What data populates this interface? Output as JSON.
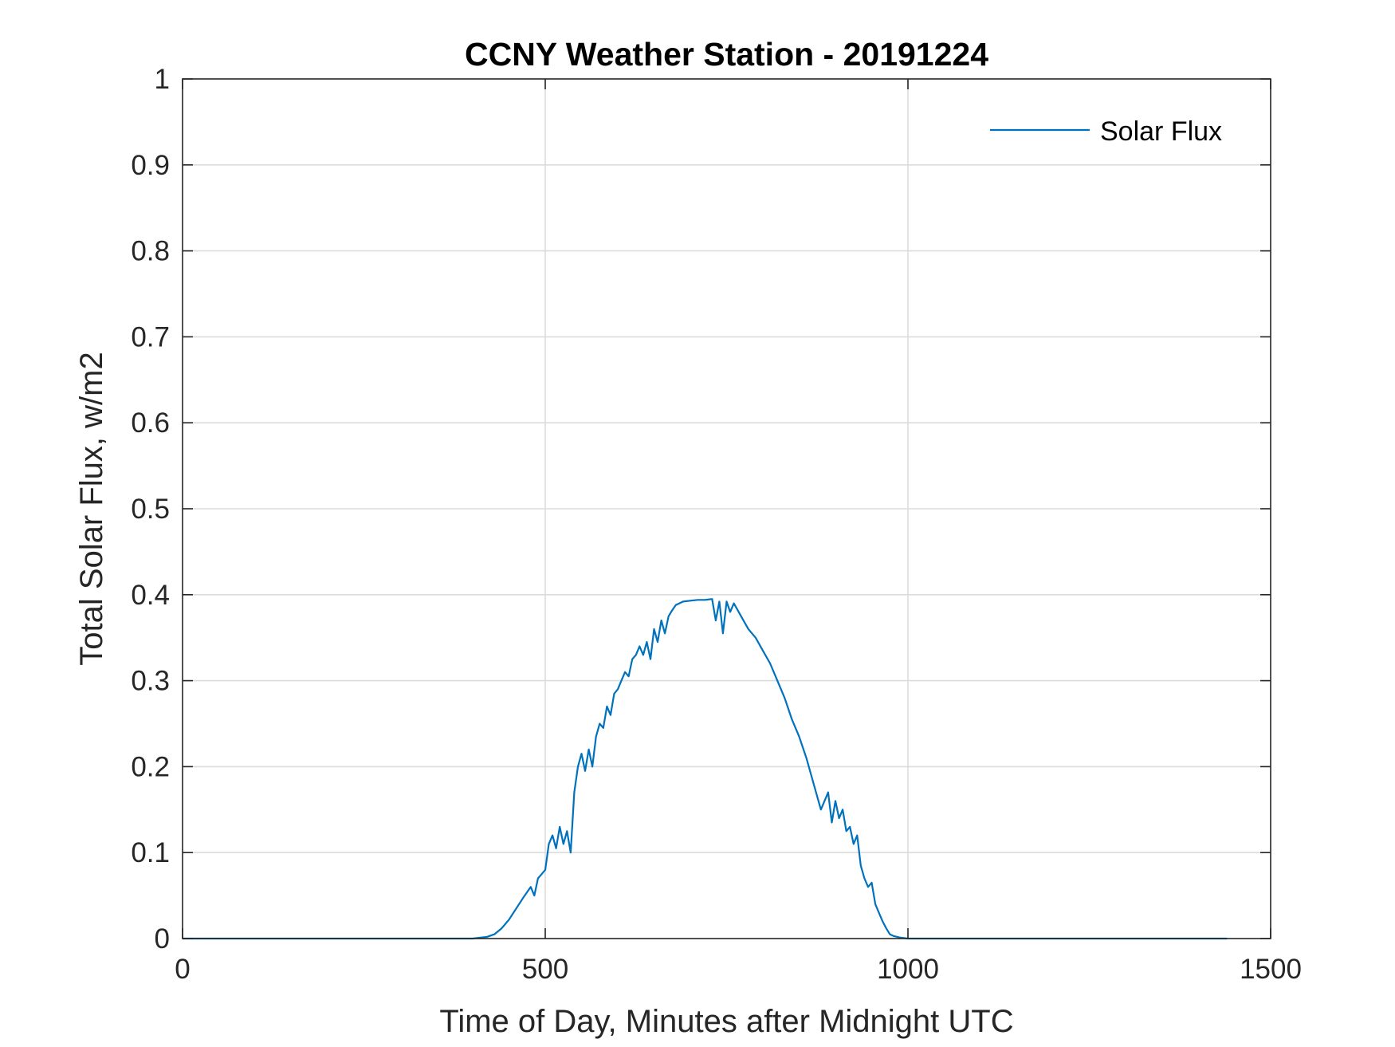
{
  "chart_data": {
    "type": "line",
    "title": "CCNY Weather Station - 20191224",
    "xlabel": "Time of Day, Minutes after Midnight UTC",
    "ylabel": "Total Solar Flux, w/m2",
    "xlim": [
      0,
      1500
    ],
    "ylim": [
      0,
      1
    ],
    "xticks": [
      0,
      500,
      1000,
      1500
    ],
    "xtick_labels": [
      "0",
      "500",
      "1000",
      "1500"
    ],
    "yticks": [
      0,
      0.1,
      0.2,
      0.3,
      0.4,
      0.5,
      0.6,
      0.7,
      0.8,
      0.9,
      1
    ],
    "ytick_labels": [
      "0",
      "0.1",
      "0.2",
      "0.3",
      "0.4",
      "0.5",
      "0.6",
      "0.7",
      "0.8",
      "0.9",
      "1"
    ],
    "grid": true,
    "legend_position": "top-right",
    "series": [
      {
        "name": "Solar Flux",
        "color": "#0072BD",
        "x": [
          0,
          100,
          200,
          300,
          400,
          420,
          430,
          440,
          450,
          460,
          470,
          480,
          485,
          490,
          495,
          500,
          505,
          510,
          515,
          520,
          525,
          530,
          535,
          540,
          545,
          550,
          555,
          560,
          565,
          570,
          575,
          580,
          585,
          590,
          595,
          600,
          605,
          610,
          615,
          620,
          625,
          630,
          635,
          640,
          645,
          650,
          655,
          660,
          665,
          670,
          675,
          680,
          690,
          700,
          710,
          720,
          730,
          735,
          740,
          745,
          750,
          755,
          760,
          770,
          780,
          790,
          800,
          810,
          820,
          830,
          840,
          850,
          860,
          870,
          880,
          890,
          895,
          900,
          905,
          910,
          915,
          920,
          925,
          930,
          935,
          940,
          945,
          950,
          955,
          960,
          965,
          970,
          975,
          980,
          990,
          1000,
          1010,
          1020,
          1100,
          1200,
          1300,
          1440
        ],
        "values": [
          0,
          0,
          0,
          0,
          0,
          0.002,
          0.005,
          0.012,
          0.022,
          0.035,
          0.048,
          0.06,
          0.05,
          0.07,
          0.075,
          0.08,
          0.11,
          0.12,
          0.105,
          0.13,
          0.11,
          0.125,
          0.1,
          0.17,
          0.2,
          0.215,
          0.195,
          0.22,
          0.2,
          0.235,
          0.25,
          0.245,
          0.27,
          0.26,
          0.285,
          0.29,
          0.3,
          0.31,
          0.305,
          0.325,
          0.33,
          0.34,
          0.33,
          0.345,
          0.325,
          0.36,
          0.345,
          0.37,
          0.355,
          0.375,
          0.382,
          0.388,
          0.392,
          0.393,
          0.394,
          0.394,
          0.395,
          0.37,
          0.392,
          0.355,
          0.392,
          0.38,
          0.39,
          0.375,
          0.36,
          0.35,
          0.335,
          0.32,
          0.3,
          0.28,
          0.255,
          0.235,
          0.21,
          0.18,
          0.15,
          0.17,
          0.135,
          0.16,
          0.14,
          0.15,
          0.125,
          0.13,
          0.11,
          0.12,
          0.085,
          0.07,
          0.06,
          0.065,
          0.04,
          0.03,
          0.02,
          0.012,
          0.005,
          0.003,
          0.001,
          0,
          0,
          0,
          0,
          0,
          0,
          0
        ]
      }
    ]
  }
}
